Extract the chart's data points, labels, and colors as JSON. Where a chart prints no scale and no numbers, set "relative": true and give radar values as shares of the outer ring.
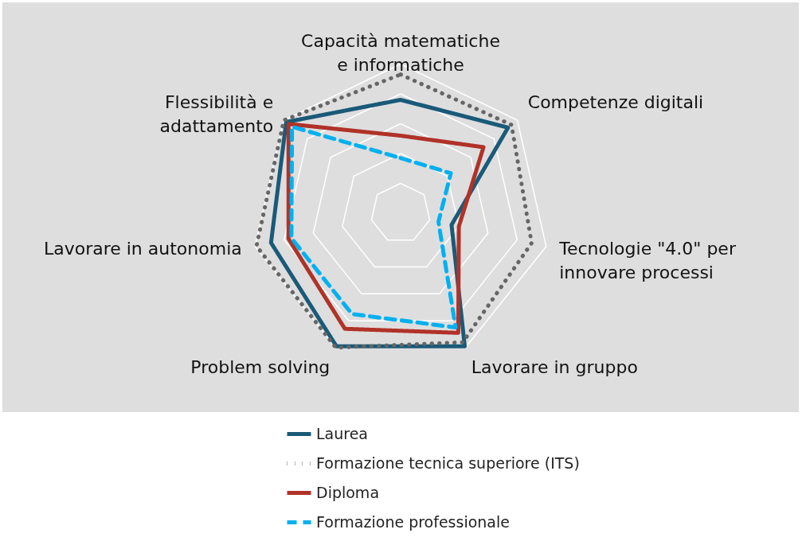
{
  "chart_data": {
    "type": "radar",
    "relative": true,
    "grid": true,
    "legend": "bottom",
    "categories": [
      "Capacità matematiche\ne informatiche",
      "Competenze digitali",
      "Tecnologie \"4.0\" per\ninnovare processi",
      "Lavorare in gruppo",
      "Problem solving",
      "Lavorare in autonomia",
      "Flessibilità e\nadattamento"
    ],
    "series": [
      {
        "name": "Laurea",
        "color": "#1a5a78",
        "line_style": "solid",
        "values": [
          0.76,
          0.92,
          0.35,
          0.99,
          0.99,
          0.89,
          0.98
        ]
      },
      {
        "name": "Formazione tecnica superiore (ITS)",
        "color": "#666666",
        "line_style": "dotted",
        "values": [
          0.93,
          0.95,
          0.9,
          0.96,
          1.0,
          0.99,
          1.0
        ]
      },
      {
        "name": "Diploma",
        "color": "#b03228",
        "line_style": "solid",
        "values": [
          0.52,
          0.71,
          0.4,
          0.89,
          0.86,
          0.77,
          0.96
        ]
      },
      {
        "name": "Formazione professionale",
        "color": "#00b0f0",
        "line_style": "dashed",
        "values": [
          0.37,
          0.43,
          0.26,
          0.85,
          0.75,
          0.75,
          0.93
        ]
      }
    ]
  }
}
